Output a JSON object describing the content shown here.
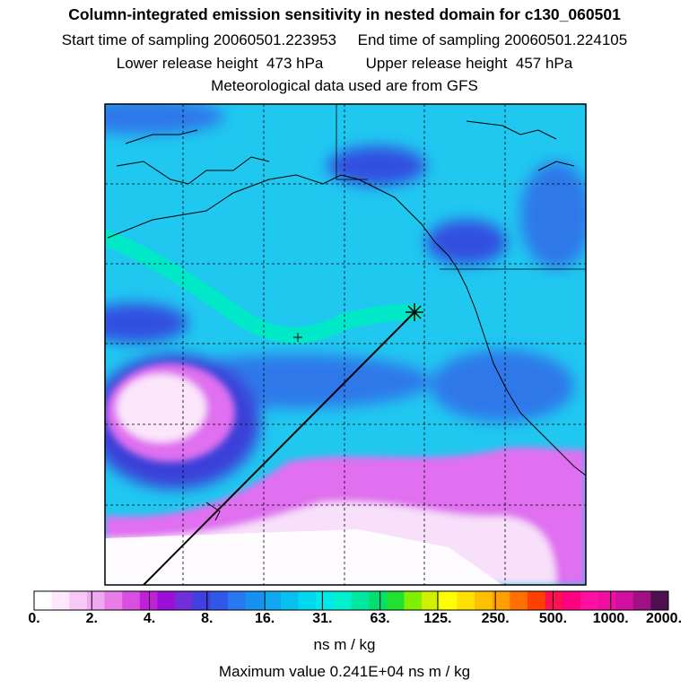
{
  "header": {
    "title": "Column-integrated emission sensitivity in nested domain for c130_060501",
    "start_label": "Start time of sampling 20060501.223953",
    "end_label": "End time of sampling 20060501.224105",
    "lower_label": "Lower release height  473 hPa",
    "upper_label": "Upper release height  457 hPa",
    "met_label": "Meteorological data used are from GFS"
  },
  "colorbar": {
    "tick_labels": [
      "0.",
      "2.",
      "4.",
      "8.",
      "16.",
      "31.",
      "63.",
      "125.",
      "250.",
      "500.",
      "1000.",
      "2000."
    ],
    "colors": [
      "#ffffff",
      "#fde8fd",
      "#f8c8f8",
      "#f0a8f0",
      "#e87de8",
      "#d94fe0",
      "#c020d8",
      "#9b10d8",
      "#7030d8",
      "#4040e0",
      "#3058e8",
      "#2878f0",
      "#1890f0",
      "#10a8f0",
      "#08c0f0",
      "#00d8f0",
      "#00e8e8",
      "#00f0d0",
      "#00e8a0",
      "#00e070",
      "#20e030",
      "#80f000",
      "#d0f000",
      "#ffff00",
      "#ffe000",
      "#ffc000",
      "#ffa000",
      "#ff7000",
      "#ff4000",
      "#ff1050",
      "#ff0080",
      "#ff10a0",
      "#f010a0",
      "#d010a0",
      "#a01080",
      "#501050"
    ],
    "unit": "ns m / kg",
    "max_value": "Maximum value  0.241E+04 ns m / kg"
  },
  "map": {
    "background_color": "#20c8f0",
    "low_color": "#3060e8",
    "plume_colors": [
      "#ff0090",
      "#ff2060",
      "#ffe000",
      "#00e8c8"
    ],
    "clear_color": "#ffffff",
    "pink_color": "#d070f0"
  }
}
